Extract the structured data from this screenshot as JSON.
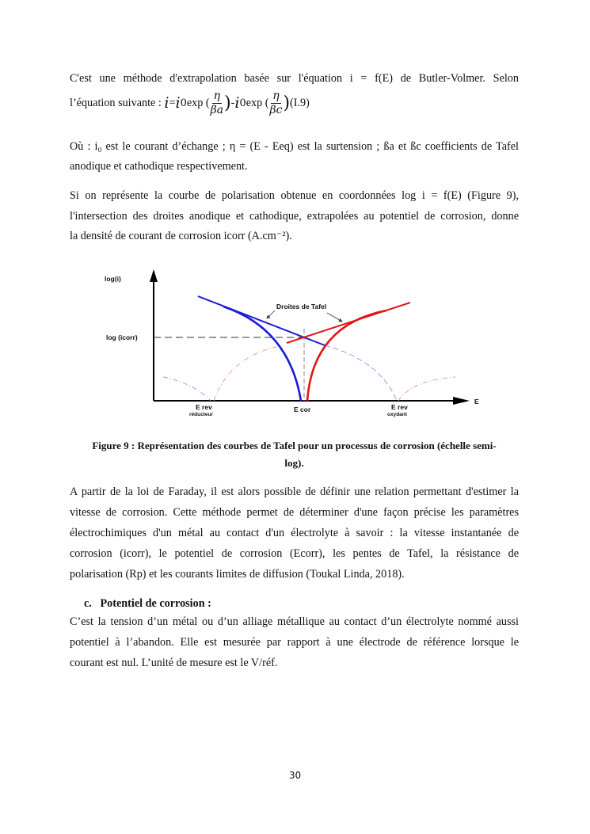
{
  "paragraph1": {
    "line1": "C'est une méthode d'extrapolation basée sur l'équation i = f(E) de Butler-Volmer. Selon",
    "eq_intro": "l’équation suivante : ",
    "eq_i": "i",
    "eq_eq": "=",
    "eq_i0": "i",
    "eq_0": "0",
    "eq_exp1": " exp (",
    "eq_eta": "η",
    "eq_beta_a": "βa",
    "eq_close": ")",
    "eq_minus": "-",
    "eq_exp2": "exp (",
    "eq_beta_c": "βc",
    "eq_label": " (I.9)"
  },
  "paragraph2": {
    "line1": "Où : i₀ est le courant d’échange ; η = (E - Eeq) est la surtension ; ßa et ßc coefficients de Tafel",
    "line2": "anodique et cathodique respectivement."
  },
  "paragraph3": {
    "line1": "Si on représente la courbe de polarisation obtenue en coordonnées log i = f(E) (Figure 9),",
    "line2": "l'intersection des droites anodique et cathodique, extrapolées au potentiel de corrosion, donne",
    "line3": "la densité de courant de corrosion icorr (A.cm⁻²)."
  },
  "figure": {
    "y_label": "log(i)",
    "icorr_label": "log (icorr)",
    "x_label": "E",
    "annotation": "Droites de Tafel",
    "erev_red": "E rev",
    "erev_red_sub": "réducteur",
    "ecor": "E cor",
    "erev_ox": "E rev",
    "erev_ox_sub": "oxydant",
    "colors": {
      "cathodic": "#1a1adc",
      "anodic": "#e01515"
    },
    "caption_line1": "Figure 9 : Représentation des courbes de Tafel pour un processus de corrosion (échelle semi-",
    "caption_line2": "log)."
  },
  "paragraph4": {
    "lines": [
      "A partir de la loi de Faraday, il est alors possible de définir une relation permettant d'estimer la",
      "vitesse de corrosion. Cette méthode permet de déterminer d'une façon précise les paramètres",
      "électrochimiques d'un métal au contact d'un électrolyte à savoir : la vitesse instantanée de",
      "corrosion (icorr), le potentiel de corrosion (Ecorr), les pentes de Tafel, la résistance de",
      "polarisation (Rp) et les courants limites de diffusion (Toukal Linda, 2018)."
    ]
  },
  "section": {
    "heading": "c.   Potentiel de corrosion :"
  },
  "paragraph5": {
    "lines": [
      "C’est la tension d’un métal ou d’un alliage métallique au contact d’un électrolyte nommé aussi",
      "potentiel à l’abandon. Elle est mesurée par rapport à une électrode de référence lorsque le",
      "courant est nul. L’unité de mesure est le V/réf."
    ]
  },
  "page_number": "30"
}
